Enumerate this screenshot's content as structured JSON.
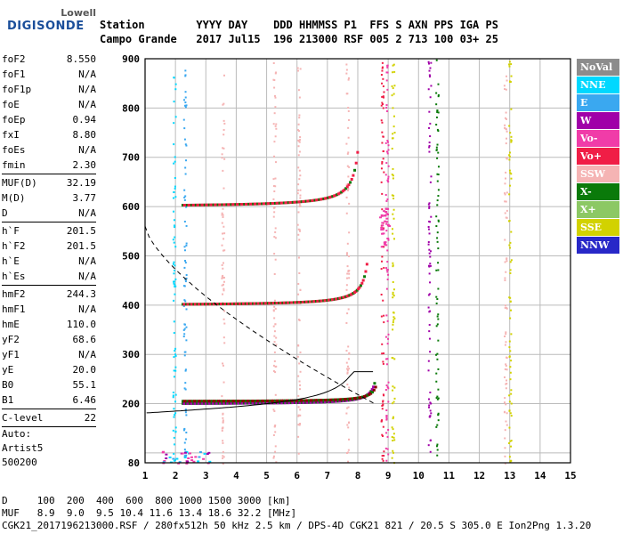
{
  "logo": {
    "line1": "Lowell",
    "line2": "DIGISONDE"
  },
  "header": {
    "line1": "Station        YYYY DAY    DDD HHMMSS P1  FFS S AXN PPS IGA PS",
    "line2": "Campo Grande   2017 Jul15  196 213000 RSF 005 2 713 100 03+ 25"
  },
  "params": [
    {
      "k": "foF2",
      "v": "8.550"
    },
    {
      "k": "foF1",
      "v": "N/A"
    },
    {
      "k": "foF1p",
      "v": "N/A"
    },
    {
      "k": "foE",
      "v": "N/A"
    },
    {
      "k": "foEp",
      "v": "0.94"
    },
    {
      "k": "fxI",
      "v": "8.80"
    },
    {
      "k": "foEs",
      "v": "N/A"
    },
    {
      "k": "fmin",
      "v": "2.30"
    },
    {
      "sep": true
    },
    {
      "k": "MUF(D)",
      "v": "32.19"
    },
    {
      "k": "M(D)",
      "v": "3.77"
    },
    {
      "k": "D",
      "v": "N/A"
    },
    {
      "sep": true
    },
    {
      "k": "h`F",
      "v": "201.5"
    },
    {
      "k": "h`F2",
      "v": "201.5"
    },
    {
      "k": "h`E",
      "v": "N/A"
    },
    {
      "k": "h`Es",
      "v": "N/A"
    },
    {
      "sep": true
    },
    {
      "k": "hmF2",
      "v": "244.3"
    },
    {
      "k": "hmF1",
      "v": "N/A"
    },
    {
      "k": "hmE",
      "v": "110.0"
    },
    {
      "k": "yF2",
      "v": "68.6"
    },
    {
      "k": "yF1",
      "v": "N/A"
    },
    {
      "k": "yE",
      "v": "20.0"
    },
    {
      "k": "B0",
      "v": "55.1"
    },
    {
      "k": "B1",
      "v": "6.46"
    },
    {
      "sep": true
    },
    {
      "k": "C-level",
      "v": "22"
    },
    {
      "sep": true
    }
  ],
  "extra": {
    "auto": "Auto:",
    "artist": "Artist5",
    "code": "500200"
  },
  "legend": [
    {
      "label": "NoVal",
      "color": "#8c8c8c"
    },
    {
      "label": "NNE",
      "color": "#00d8ff"
    },
    {
      "label": "E",
      "color": "#3aa8f0"
    },
    {
      "label": "W",
      "color": "#a000a8"
    },
    {
      "label": "Vo-",
      "color": "#f03ca8"
    },
    {
      "label": "Vo+",
      "color": "#f01e46"
    },
    {
      "label": "SSW",
      "color": "#f5b4b4"
    },
    {
      "label": "X-",
      "color": "#0a7a0a"
    },
    {
      "label": "X+",
      "color": "#8cc864"
    },
    {
      "label": "SSE",
      "color": "#d2d200"
    },
    {
      "label": "NNW",
      "color": "#2828c8"
    }
  ],
  "plot": {
    "y_ticks": [
      "900",
      "800",
      "700",
      "600",
      "500",
      "400",
      "300",
      "200",
      "80"
    ],
    "x_ticks": [
      "1",
      "2",
      "3",
      "4",
      "5",
      "6",
      "7",
      "8",
      "9",
      "10",
      "11",
      "12",
      "13",
      "14",
      "15"
    ]
  },
  "bottom": {
    "line1": "D     100  200  400  600  800 1000 1500 3000 [km]",
    "line2": "MUF   8.9  9.0  9.5 10.4 11.6 13.4 18.6 32.2 [MHz]",
    "line3": "CGK21_2017196213000.RSF / 280fx512h 50 kHz 2.5 km / DPS-4D CGK21 821 / 20.5 S 305.0 E Ion2Png 1.3.20"
  }
}
